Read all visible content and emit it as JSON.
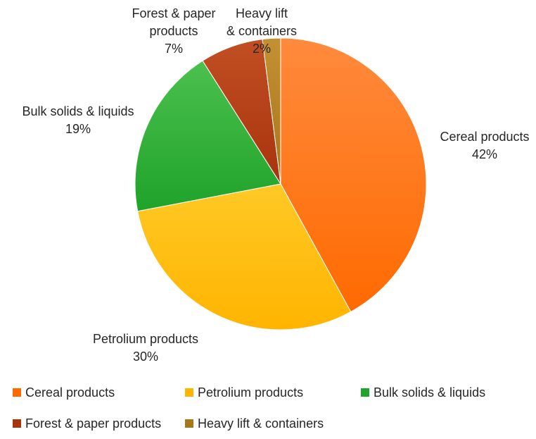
{
  "chart_data": {
    "type": "pie",
    "title": "",
    "start_angle_deg": 0,
    "direction": "clockwise",
    "slices": [
      {
        "label": "Cereal products",
        "value": 42,
        "value_label": "42%",
        "color": "#FF6A00",
        "color_light": "#FF8A3D"
      },
      {
        "label": "Petrolium products",
        "value": 30,
        "value_label": "30%",
        "color": "#FFB400",
        "color_light": "#FFC926"
      },
      {
        "label": "Bulk solids & liquids",
        "value": 19,
        "value_label": "19%",
        "color": "#1FA32A",
        "color_light": "#4CC04E"
      },
      {
        "label": "Forest & paper products",
        "value": 7,
        "value_label": "7%",
        "color": "#A8340E",
        "color_light": "#C24E23"
      },
      {
        "label": "Heavy lift & containers",
        "value": 2,
        "value_label": "2%",
        "color": "#A8771A",
        "color_light": "#C39032"
      }
    ],
    "legend_position": "bottom"
  }
}
